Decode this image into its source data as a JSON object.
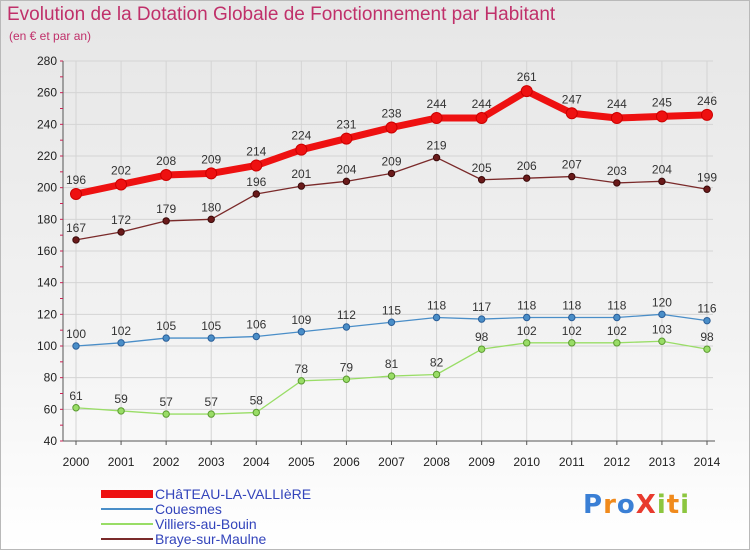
{
  "title": "Evolution de la Dotation Globale de Fonctionnement par Habitant",
  "subtitle": "(en € et par an)",
  "brand": {
    "text": "ProXiti",
    "colors": [
      "#3a7fd5",
      "#f08a1c",
      "#3a7fd5",
      "#e83a2e",
      "#8cc63f",
      "#f08a1c",
      "#8cc63f"
    ]
  },
  "chart_data": {
    "type": "line",
    "title": "Evolution de la Dotation Globale de Fonctionnement par Habitant",
    "subtitle": "(en € et par an)",
    "xlabel": "",
    "ylabel": "",
    "x": [
      "2000",
      "2001",
      "2002",
      "2003",
      "2004",
      "2005",
      "2006",
      "2007",
      "2008",
      "2009",
      "2010",
      "2011",
      "2012",
      "2013",
      "2014"
    ],
    "ylim": [
      40,
      280
    ],
    "yticks": [
      "40",
      "60",
      "80",
      "100",
      "120",
      "140",
      "160",
      "180",
      "200",
      "220",
      "240",
      "260",
      "280"
    ],
    "grid": true,
    "legend_position": "bottom-left",
    "series": [
      {
        "name": "CHâTEAU-LA-VALLIèRE",
        "color": "#ee1111",
        "values": [
          196,
          202,
          208,
          209,
          214,
          224,
          231,
          238,
          244,
          244,
          261,
          247,
          244,
          245,
          246
        ]
      },
      {
        "name": "Couesmes",
        "color": "#4a8ec8",
        "values": [
          100,
          102,
          105,
          105,
          106,
          109,
          112,
          115,
          118,
          117,
          118,
          118,
          118,
          120,
          116
        ]
      },
      {
        "name": "Villiers-au-Bouin",
        "color": "#99dd66",
        "values": [
          61,
          59,
          57,
          57,
          58,
          78,
          79,
          81,
          82,
          98,
          102,
          102,
          102,
          103,
          98
        ]
      },
      {
        "name": "Braye-sur-Maulne",
        "color": "#7a2a2a",
        "values": [
          167,
          172,
          179,
          180,
          196,
          201,
          204,
          209,
          219,
          205,
          206,
          207,
          203,
          204,
          199
        ]
      }
    ]
  }
}
